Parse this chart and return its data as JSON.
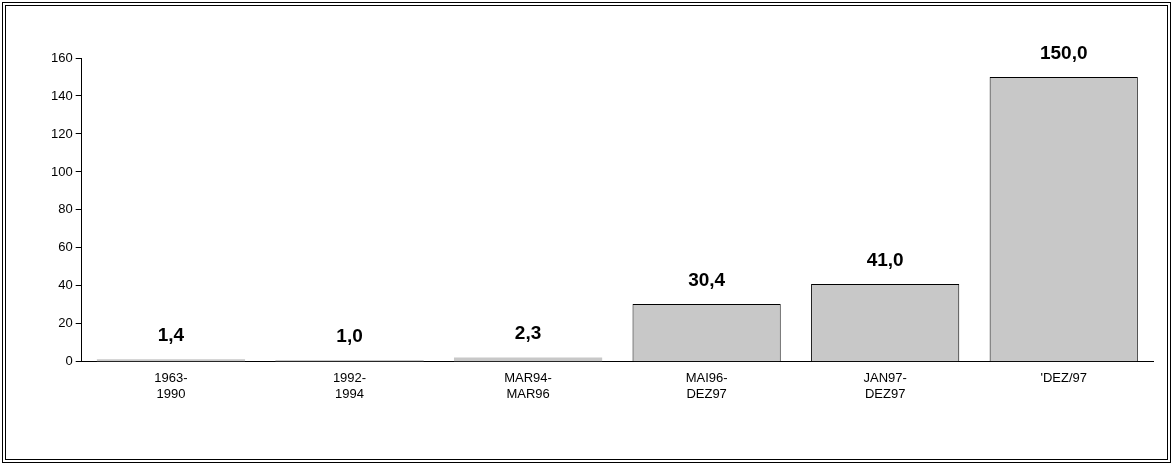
{
  "chart_data": {
    "type": "bar",
    "categories": [
      "1963- 1990",
      "1992- 1994",
      "MAR94- MAR96",
      "MAI96- DEZ97",
      "JAN97- DEZ97",
      "'DEZ/97"
    ],
    "values": [
      1.4,
      1.0,
      2.3,
      30.4,
      41.0,
      150.0
    ],
    "value_labels": [
      "1,4",
      "1,0",
      "2,3",
      "30,4",
      "41,0",
      "150,0"
    ],
    "color": "#c8c8c8",
    "ylim": [
      0,
      160
    ],
    "yticks": [
      0,
      20,
      40,
      60,
      80,
      100,
      120,
      140,
      160
    ],
    "grid": false,
    "legend": false
  }
}
